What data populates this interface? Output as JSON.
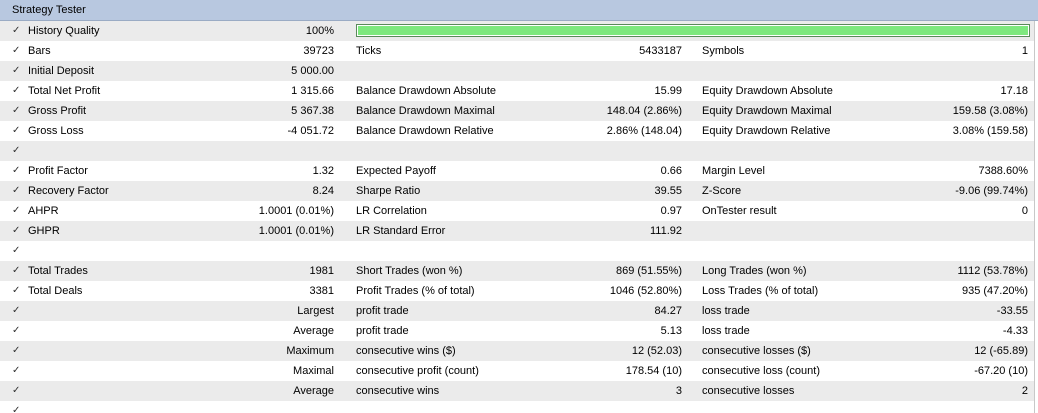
{
  "window": {
    "title": "Strategy Tester"
  },
  "history_quality": {
    "label": "History Quality",
    "value": "100%",
    "fraction": 1.0,
    "bar_color": "#7ee87e"
  },
  "rows": [
    {
      "l1": "Bars",
      "v1": "39723",
      "l2": "Ticks",
      "v2": "5433187",
      "l3": "Symbols",
      "v3": "1"
    },
    {
      "l1": "Initial Deposit",
      "v1": "5 000.00",
      "l2": "",
      "v2": "",
      "l3": "",
      "v3": ""
    },
    {
      "l1": "Total Net Profit",
      "v1": "1 315.66",
      "l2": "Balance Drawdown Absolute",
      "v2": "15.99",
      "l3": "Equity Drawdown Absolute",
      "v3": "17.18"
    },
    {
      "l1": "Gross Profit",
      "v1": "5 367.38",
      "l2": "Balance Drawdown Maximal",
      "v2": "148.04 (2.86%)",
      "l3": "Equity Drawdown Maximal",
      "v3": "159.58 (3.08%)"
    },
    {
      "l1": "Gross Loss",
      "v1": "-4 051.72",
      "l2": "Balance Drawdown Relative",
      "v2": "2.86% (148.04)",
      "l3": "Equity Drawdown Relative",
      "v3": "3.08% (159.58)"
    },
    {
      "l1": "",
      "v1": "",
      "l2": "",
      "v2": "",
      "l3": "",
      "v3": ""
    },
    {
      "l1": "Profit Factor",
      "v1": "1.32",
      "l2": "Expected Payoff",
      "v2": "0.66",
      "l3": "Margin Level",
      "v3": "7388.60%"
    },
    {
      "l1": "Recovery Factor",
      "v1": "8.24",
      "l2": "Sharpe Ratio",
      "v2": "39.55",
      "l3": "Z-Score",
      "v3": "-9.06 (99.74%)"
    },
    {
      "l1": "AHPR",
      "v1": "1.0001 (0.01%)",
      "l2": "LR Correlation",
      "v2": "0.97",
      "l3": "OnTester result",
      "v3": "0"
    },
    {
      "l1": "GHPR",
      "v1": "1.0001 (0.01%)",
      "l2": "LR Standard Error",
      "v2": "111.92",
      "l3": "",
      "v3": ""
    },
    {
      "l1": "",
      "v1": "",
      "l2": "",
      "v2": "",
      "l3": "",
      "v3": ""
    },
    {
      "l1": "Total Trades",
      "v1": "1981",
      "l2": "Short Trades (won %)",
      "v2": "869 (51.55%)",
      "l3": "Long Trades (won %)",
      "v3": "1112 (53.78%)"
    },
    {
      "l1": "Total Deals",
      "v1": "3381",
      "l2": "Profit Trades (% of total)",
      "v2": "1046 (52.80%)",
      "l3": "Loss Trades (% of total)",
      "v3": "935 (47.20%)"
    },
    {
      "l1": "",
      "v1": "Largest",
      "l2": "profit trade",
      "v2": "84.27",
      "l3": "loss trade",
      "v3": "-33.55"
    },
    {
      "l1": "",
      "v1": "Average",
      "l2": "profit trade",
      "v2": "5.13",
      "l3": "loss trade",
      "v3": "-4.33"
    },
    {
      "l1": "",
      "v1": "Maximum",
      "l2": "consecutive wins ($)",
      "v2": "12 (52.03)",
      "l3": "consecutive losses ($)",
      "v3": "12 (-65.89)"
    },
    {
      "l1": "",
      "v1": "Maximal",
      "l2": "consecutive profit (count)",
      "v2": "178.54 (10)",
      "l3": "consecutive loss (count)",
      "v3": "-67.20 (10)"
    },
    {
      "l1": "",
      "v1": "Average",
      "l2": "consecutive wins",
      "v2": "3",
      "l3": "consecutive losses",
      "v3": "2"
    },
    {
      "l1": "",
      "v1": "",
      "l2": "",
      "v2": "",
      "l3": "",
      "v3": ""
    }
  ],
  "check_glyph": "✓"
}
